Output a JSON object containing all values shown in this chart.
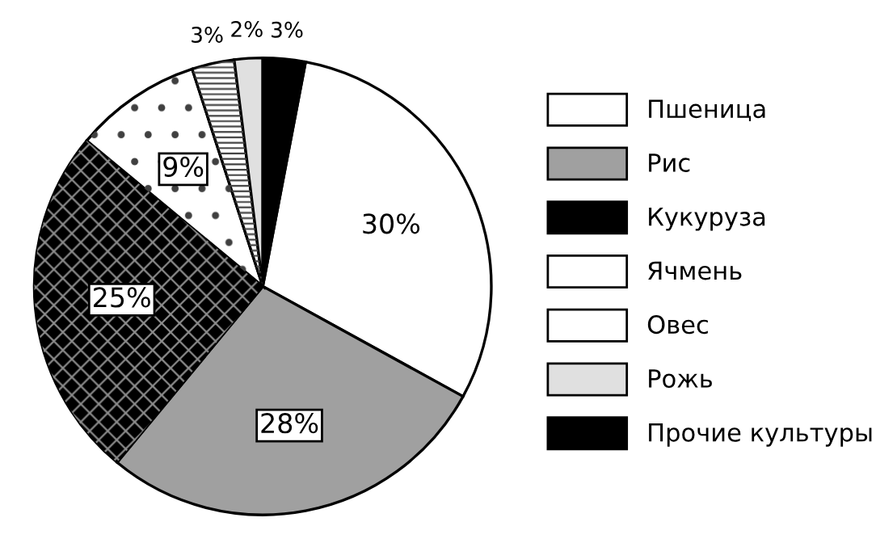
{
  "chart_data": {
    "type": "pie",
    "categories": [
      "Пшеница",
      "Рис",
      "Кукуруза",
      "Ячмень",
      "Овес",
      "Рожь",
      "Прочие культуры"
    ],
    "values": [
      30,
      28,
      25,
      9,
      3,
      2,
      3
    ],
    "value_labels": [
      "30%",
      "28%",
      "25%",
      "9%",
      "3%",
      "2%",
      "3%"
    ],
    "colors": [
      "#ffffff",
      "#a0a0a0",
      "#000000",
      "#ffffff",
      "#ffffff",
      "#e0e0e0",
      "#000000"
    ],
    "legend": "right"
  }
}
